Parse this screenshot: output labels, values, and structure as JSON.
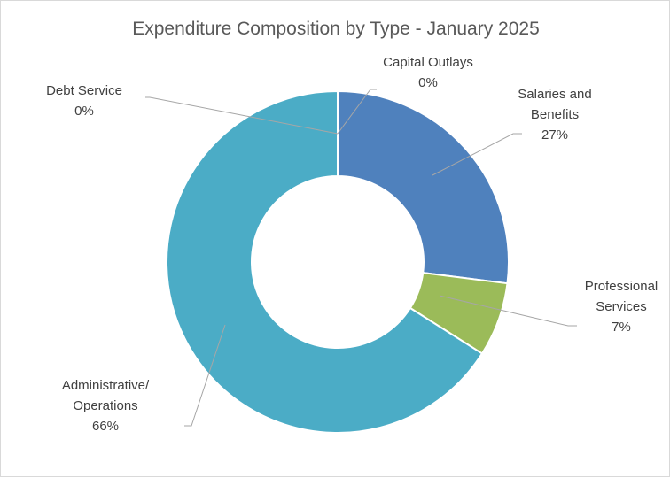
{
  "chart_data": {
    "type": "pie",
    "variant": "doughnut",
    "title": "Expenditure Composition by Type - January 2025",
    "slices": [
      {
        "label_lines": [
          "Salaries and",
          "Benefits"
        ],
        "percent_label": "27%",
        "value": 27,
        "color": "#4f81bd"
      },
      {
        "label_lines": [
          "Professional",
          "Services"
        ],
        "percent_label": "7%",
        "value": 7,
        "color": "#9bbb59"
      },
      {
        "label_lines": [
          "Administrative/",
          "Operations"
        ],
        "percent_label": "66%",
        "value": 66,
        "color": "#4bacc6"
      },
      {
        "label_lines": [
          "Debt Service"
        ],
        "percent_label": "0%",
        "value": 0,
        "color": "#8064a2"
      },
      {
        "label_lines": [
          "Capital Outlays"
        ],
        "percent_label": "0%",
        "value": 0,
        "color": "#f79646"
      }
    ],
    "legend": "none",
    "data_labels": "outside-with-leader-lines"
  }
}
